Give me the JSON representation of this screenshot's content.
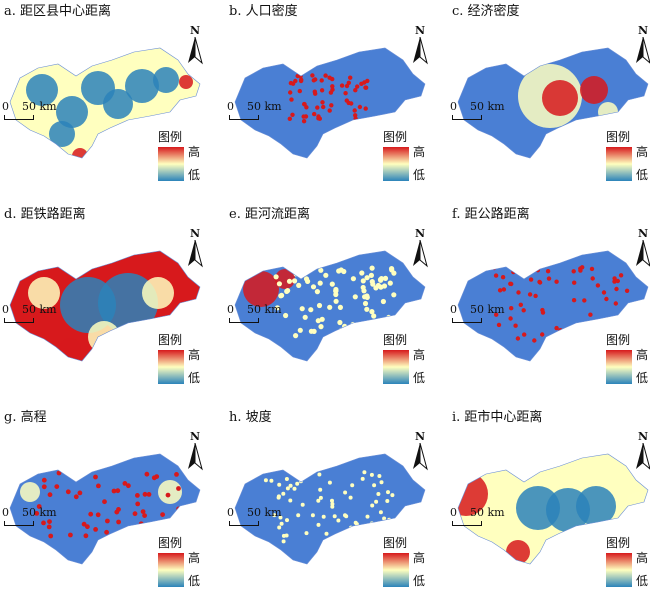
{
  "panels": [
    {
      "id": "a",
      "title": "a. 距区县中心距离",
      "pattern": "centers"
    },
    {
      "id": "b",
      "title": "b. 人口密度",
      "pattern": "population"
    },
    {
      "id": "c",
      "title": "c. 经济密度",
      "pattern": "economy"
    },
    {
      "id": "d",
      "title": "d. 距铁路距离",
      "pattern": "railway"
    },
    {
      "id": "e",
      "title": "e. 距河流距离",
      "pattern": "river"
    },
    {
      "id": "f",
      "title": "f. 距公路距离",
      "pattern": "road"
    },
    {
      "id": "g",
      "title": "g. 高程",
      "pattern": "elevation"
    },
    {
      "id": "h",
      "title": "h. 坡度",
      "pattern": "slope"
    },
    {
      "id": "i",
      "title": "i. 距市中心距离",
      "pattern": "citycenter"
    }
  ],
  "north_label": "N",
  "scale_zero": "0",
  "scale_distance": "50 km",
  "legend_title": "图例",
  "legend_high": "高",
  "legend_low": "低",
  "colors": {
    "ramp_high": "#d7191c",
    "ramp_mid": "#ffffbf",
    "ramp_low": "#2b83ba",
    "base_blue": "#4a7fd4"
  }
}
